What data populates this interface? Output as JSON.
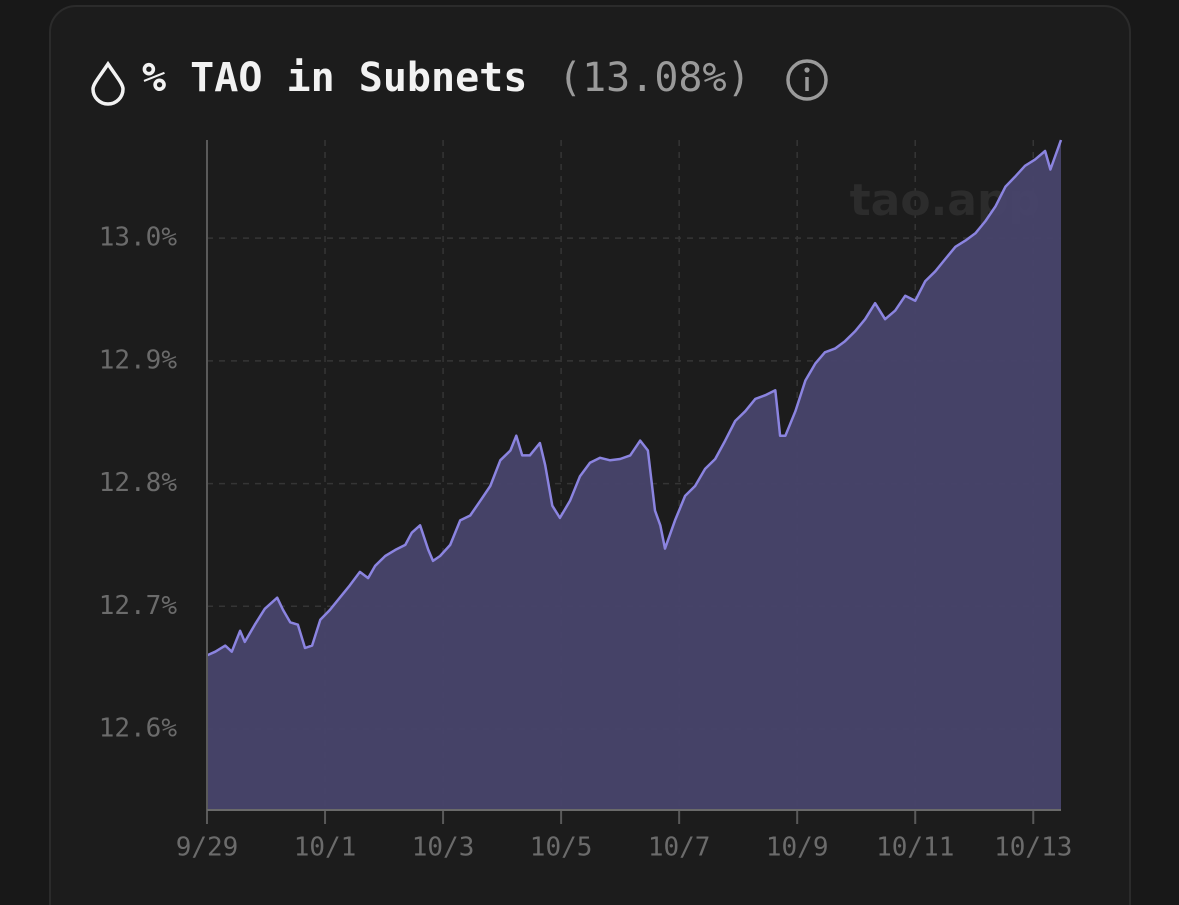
{
  "chart_data": {
    "type": "area",
    "title": "% TAO in Subnets",
    "title_value": "(13.08%)",
    "watermark": "tao.app",
    "line_color": "#8b84e0",
    "fill_color": "#48456c",
    "grid": true,
    "x": [
      0,
      0.14,
      0.31,
      0.42,
      0.56,
      0.64,
      0.81,
      0.98,
      1.19,
      1.29,
      1.41,
      1.54,
      1.66,
      1.78,
      1.92,
      2.08,
      2.25,
      2.42,
      2.59,
      2.73,
      2.85,
      3.02,
      3.19,
      3.36,
      3.47,
      3.61,
      3.75,
      3.83,
      3.95,
      4.12,
      4.29,
      4.46,
      4.63,
      4.8,
      4.97,
      5.14,
      5.24,
      5.34,
      5.47,
      5.64,
      5.73,
      5.85,
      5.98,
      6.15,
      6.32,
      6.49,
      6.66,
      6.83,
      7,
      7.17,
      7.34,
      7.47,
      7.59,
      7.68,
      7.76,
      7.93,
      8.1,
      8.27,
      8.44,
      8.61,
      8.78,
      8.95,
      9.12,
      9.29,
      9.46,
      9.63,
      9.71,
      9.8,
      9.97,
      10.14,
      10.31,
      10.47,
      10.64,
      10.81,
      10.98,
      11.15,
      11.32,
      11.49,
      11.66,
      11.83,
      12,
      12.17,
      12.34,
      12.51,
      12.68,
      12.85,
      13.02,
      13.19,
      13.36,
      13.53,
      13.69,
      13.86,
      14.03,
      14.2,
      14.29,
      14.47
    ],
    "values": [
      12.66,
      12.663,
      12.668,
      12.663,
      12.68,
      12.671,
      12.685,
      12.698,
      12.707,
      12.697,
      12.687,
      12.685,
      12.666,
      12.668,
      12.689,
      12.697,
      12.707,
      12.717,
      12.728,
      12.723,
      12.733,
      12.741,
      12.746,
      12.75,
      12.76,
      12.766,
      12.746,
      12.737,
      12.741,
      12.75,
      12.77,
      12.774,
      12.786,
      12.798,
      12.819,
      12.827,
      12.839,
      12.823,
      12.823,
      12.833,
      12.815,
      12.782,
      12.772,
      12.786,
      12.806,
      12.817,
      12.821,
      12.819,
      12.82,
      12.823,
      12.835,
      12.827,
      12.778,
      12.766,
      12.747,
      12.77,
      12.79,
      12.798,
      12.812,
      12.82,
      12.835,
      12.851,
      12.859,
      12.869,
      12.872,
      12.876,
      12.839,
      12.839,
      12.859,
      12.884,
      12.898,
      12.907,
      12.91,
      12.916,
      12.924,
      12.934,
      12.947,
      12.934,
      12.941,
      12.953,
      12.949,
      12.965,
      12.973,
      12.983,
      12.993,
      12.998,
      13.004,
      13.014,
      13.026,
      13.042,
      13.05,
      13.059,
      13.064,
      13.071,
      13.056,
      13.08
    ],
    "xlim": [
      0,
      14.47
    ],
    "xticks": [
      {
        "value": 0,
        "label": "9/29"
      },
      {
        "value": 2,
        "label": "10/1"
      },
      {
        "value": 4,
        "label": "10/3"
      },
      {
        "value": 6,
        "label": "10/5"
      },
      {
        "value": 8,
        "label": "10/7"
      },
      {
        "value": 10,
        "label": "10/9"
      },
      {
        "value": 12,
        "label": "10/11"
      },
      {
        "value": 14,
        "label": "10/13"
      }
    ],
    "ylim": [
      12.534,
      13.08
    ],
    "yticks": [
      {
        "value": 12.6,
        "label": "12.6%"
      },
      {
        "value": 12.7,
        "label": "12.7%"
      },
      {
        "value": 12.8,
        "label": "12.8%"
      },
      {
        "value": 12.9,
        "label": "12.9%"
      },
      {
        "value": 13.0,
        "label": "13.0%"
      }
    ]
  }
}
